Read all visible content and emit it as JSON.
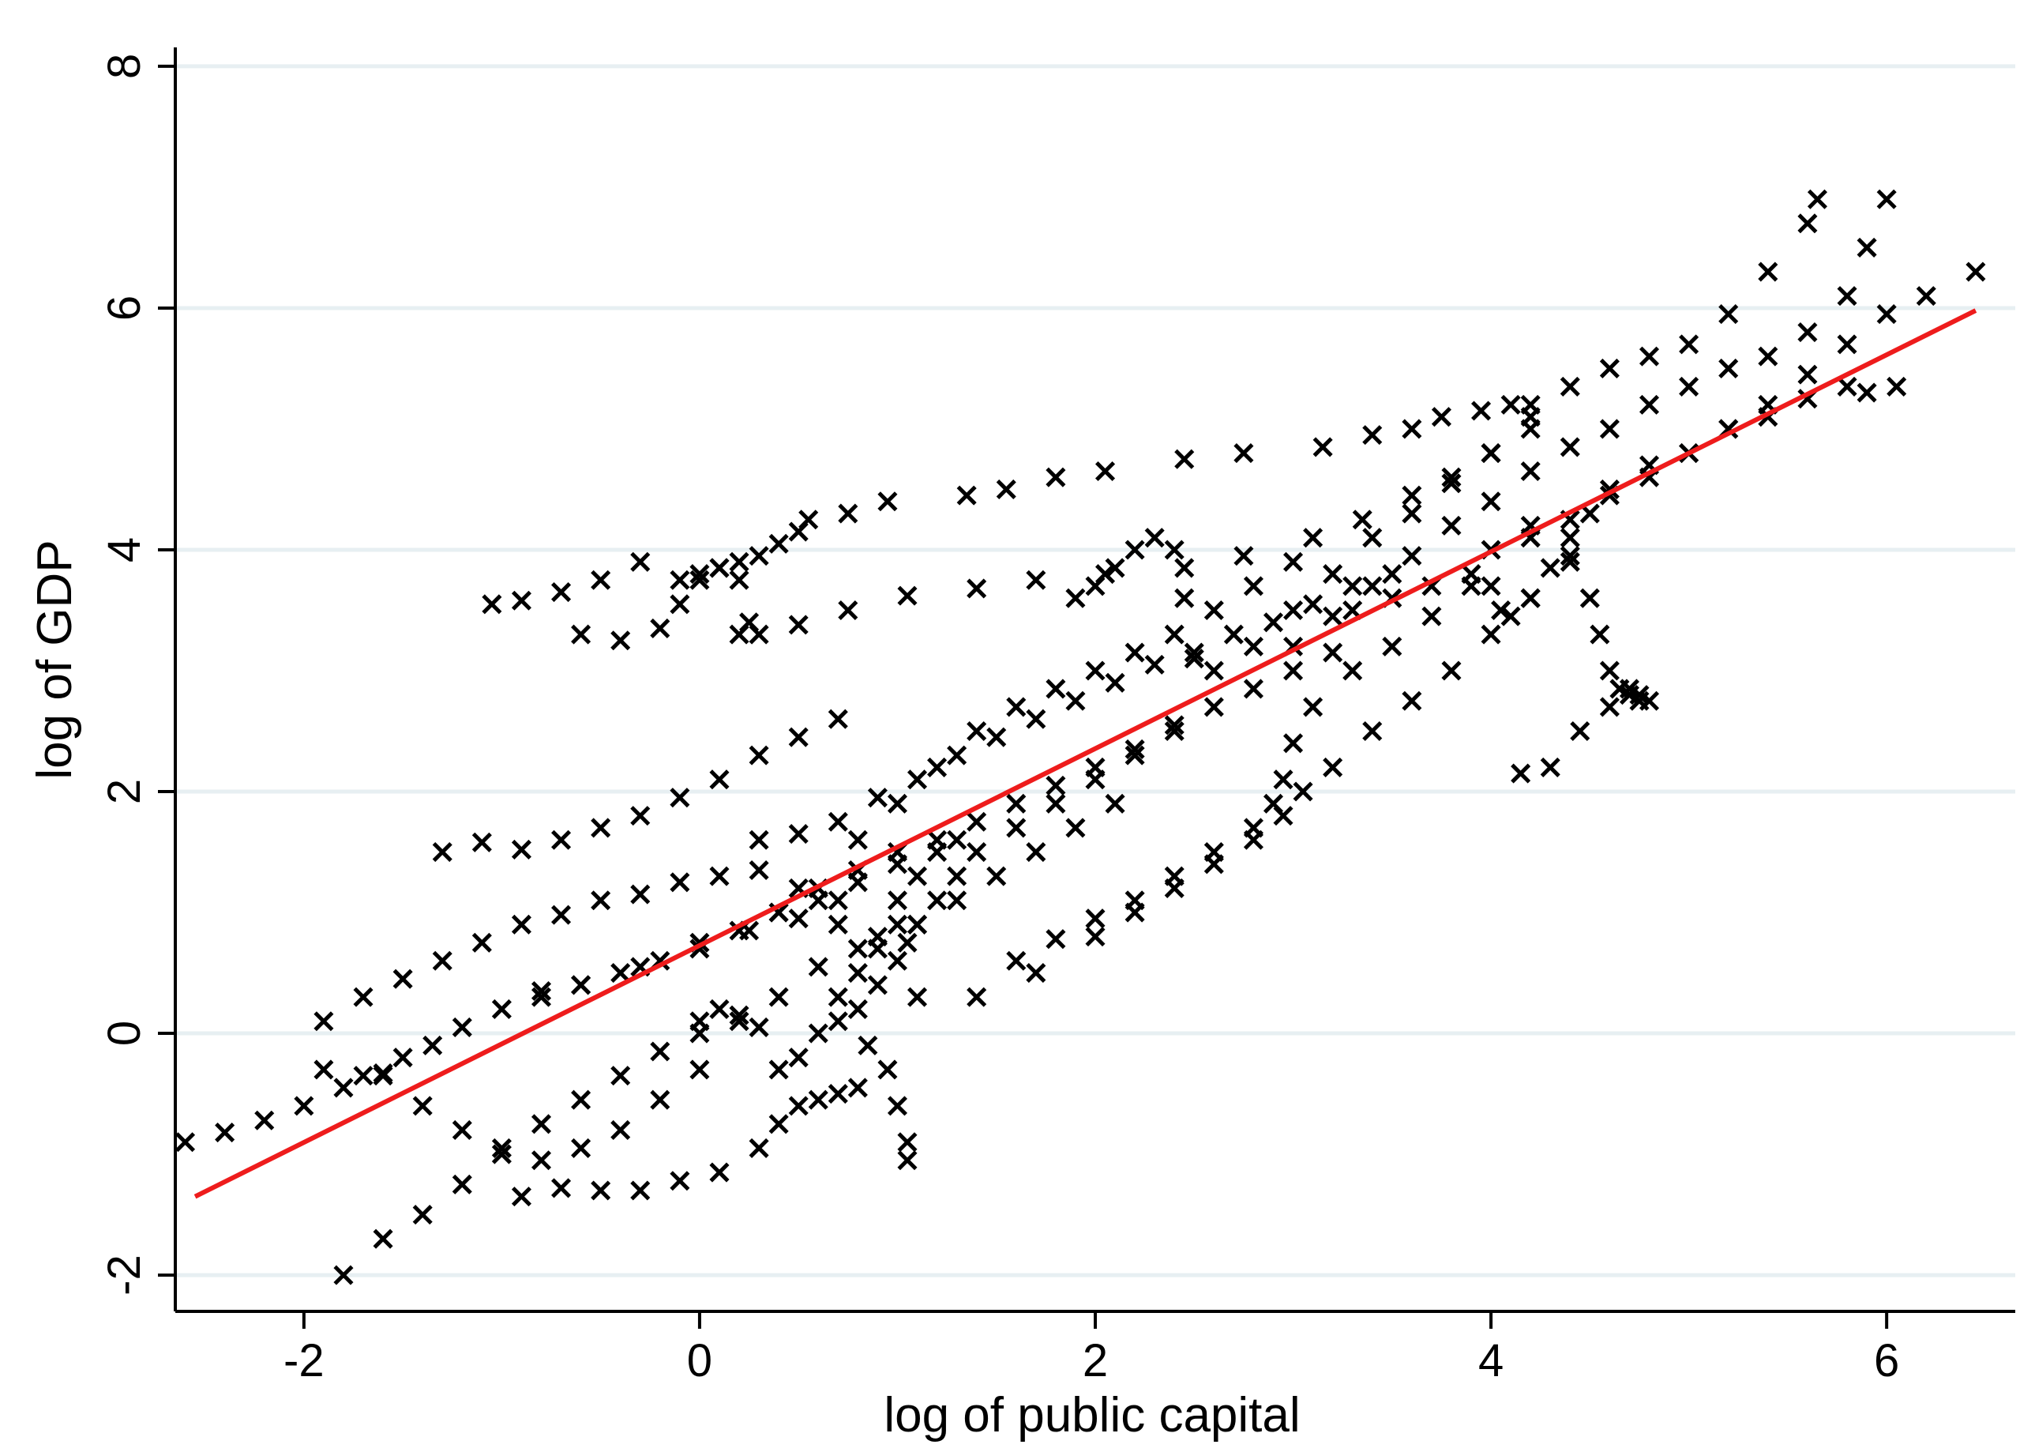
{
  "chart_data": {
    "type": "scatter",
    "title": "",
    "xlabel": "log of public capital",
    "ylabel": "log of GDP",
    "xlim": [
      -2.65,
      6.65
    ],
    "ylim": [
      -2.3,
      8.3
    ],
    "x_ticks": [
      -2,
      0,
      2,
      4,
      6
    ],
    "y_ticks": [
      -2,
      0,
      2,
      4,
      6,
      8
    ],
    "x_tick_labels": [
      "-2",
      "0",
      "2",
      "4",
      "6"
    ],
    "y_tick_labels": [
      "-2",
      "0",
      "2",
      "4",
      "6",
      "8"
    ],
    "grid": "horizontal",
    "legend": "none",
    "marker": "x",
    "colors": {
      "points": "#000000",
      "fit_line": "#ee1c1c",
      "grid": "#e7eff2"
    },
    "fit_line": {
      "x": [
        -2.55,
        6.45
      ],
      "y": [
        -1.35,
        5.98
      ]
    },
    "series": [
      {
        "x": [
          -2.6,
          -2.4,
          -2.2,
          -2.0,
          -1.8,
          -1.7,
          -1.6,
          -1.5,
          -1.35,
          -1.2,
          -1.0,
          -0.8,
          -0.6,
          -0.3,
          0.0,
          0.25,
          0.5,
          0.7
        ],
        "y": [
          -0.9,
          -0.82,
          -0.72,
          -0.6,
          -0.45,
          -0.35,
          -0.33,
          -0.2,
          -0.1,
          0.05,
          0.2,
          0.3,
          0.4,
          0.55,
          0.7,
          0.85,
          0.95,
          1.1
        ]
      },
      {
        "x": [
          -1.9,
          -1.7,
          -1.5,
          -1.3,
          -1.1,
          -0.9,
          -0.7,
          -0.5,
          -0.3,
          -0.1,
          0.1,
          0.3
        ],
        "y": [
          0.1,
          0.3,
          0.45,
          0.6,
          0.75,
          0.9,
          0.98,
          1.1,
          1.15,
          1.25,
          1.3,
          1.35
        ]
      },
      {
        "x": [
          -1.3,
          -1.1,
          -0.9,
          -0.7,
          -0.5,
          -0.3,
          -0.1,
          0.1,
          0.3,
          0.5,
          0.7
        ],
        "y": [
          1.5,
          1.58,
          1.52,
          1.6,
          1.7,
          1.8,
          1.95,
          2.1,
          2.3,
          2.45,
          2.6
        ]
      },
      {
        "x": [
          -1.8,
          -1.6,
          -1.4,
          -1.2,
          -1.0,
          -0.8,
          -0.6,
          -0.4,
          -0.2,
          0.0,
          0.2,
          0.4,
          0.6,
          0.8,
          1.0
        ],
        "y": [
          -2.0,
          -1.7,
          -1.5,
          -1.25,
          -1.0,
          -0.75,
          -0.55,
          -0.35,
          -0.15,
          0.0,
          0.1,
          0.3,
          0.55,
          0.7,
          0.9
        ]
      },
      {
        "x": [
          -0.9,
          -0.7,
          -0.5,
          -0.3,
          -0.1,
          0.1,
          0.3,
          0.4,
          0.5,
          0.6,
          0.7,
          0.8
        ],
        "y": [
          -1.35,
          -1.28,
          -1.3,
          -1.3,
          -1.22,
          -1.15,
          -0.95,
          -0.75,
          -0.6,
          -0.55,
          -0.5,
          -0.45
        ]
      },
      {
        "x": [
          -1.05,
          -0.9,
          -0.7,
          -0.5,
          -0.3,
          -0.1,
          0.0,
          0.1,
          0.2
        ],
        "y": [
          3.55,
          3.58,
          3.65,
          3.75,
          3.9,
          3.75,
          3.8,
          3.85,
          3.9
        ]
      },
      {
        "x": [
          -0.6,
          -0.4,
          -0.2,
          -0.1,
          0.0,
          0.1,
          0.2,
          0.25,
          0.3,
          0.4,
          0.5,
          0.55
        ],
        "y": [
          3.3,
          3.25,
          3.35,
          3.55,
          3.75,
          3.85,
          3.75,
          3.4,
          3.95,
          4.05,
          4.15,
          4.25
        ]
      },
      {
        "x": [
          0.2,
          0.3,
          0.5,
          0.75,
          1.05,
          1.4,
          1.7,
          2.05,
          2.45,
          2.75,
          3.1,
          3.35,
          3.6,
          3.8,
          4.0,
          4.2
        ],
        "y": [
          3.3,
          3.3,
          3.38,
          3.5,
          3.62,
          3.68,
          3.75,
          3.8,
          3.85,
          3.95,
          4.1,
          4.25,
          4.45,
          4.6,
          4.8,
          5.0
        ]
      },
      {
        "x": [
          0.75,
          0.95,
          1.35,
          1.55,
          1.8,
          2.05,
          2.45,
          2.75,
          3.15,
          3.4,
          3.6,
          3.75,
          3.95,
          4.1,
          4.2
        ],
        "y": [
          4.3,
          4.4,
          4.45,
          4.5,
          4.6,
          4.65,
          4.75,
          4.8,
          4.85,
          4.95,
          5.0,
          5.1,
          5.15,
          5.2,
          5.2
        ]
      },
      {
        "x": [
          1.9,
          2.0,
          2.1,
          2.2,
          2.3,
          2.4,
          2.45,
          2.5,
          2.6,
          2.8,
          3.0,
          3.2,
          3.4,
          3.6,
          3.8,
          4.0,
          4.2,
          4.4,
          4.6,
          4.8,
          5.0,
          5.2,
          5.4,
          5.6,
          5.65
        ],
        "y": [
          3.6,
          3.7,
          3.85,
          4.0,
          4.1,
          4.0,
          3.6,
          3.1,
          3.0,
          3.2,
          3.5,
          3.8,
          4.1,
          4.3,
          4.55,
          4.8,
          5.1,
          5.35,
          5.5,
          5.6,
          5.7,
          5.95,
          6.3,
          6.7,
          6.9
        ]
      },
      {
        "x": [
          3.0,
          3.2,
          3.4,
          3.6,
          3.8,
          4.0,
          4.2,
          4.4,
          4.6,
          4.8,
          5.0,
          5.2,
          5.4,
          5.6,
          5.8,
          5.9,
          6.0
        ],
        "y": [
          3.2,
          3.45,
          3.7,
          3.95,
          4.2,
          4.4,
          4.65,
          4.85,
          5.0,
          5.2,
          5.35,
          5.5,
          5.6,
          5.8,
          6.1,
          6.5,
          6.9
        ]
      },
      {
        "x": [
          4.0,
          4.2,
          4.4,
          4.6,
          4.8,
          5.0,
          5.2,
          5.4,
          5.6,
          5.8,
          6.0,
          6.2,
          6.45
        ],
        "y": [
          4.0,
          4.1,
          4.25,
          4.45,
          4.6,
          4.8,
          5.0,
          5.2,
          5.45,
          5.7,
          5.95,
          6.1,
          6.3
        ]
      },
      {
        "x": [
          4.6,
          4.8,
          5.0,
          5.2,
          5.4,
          5.6,
          5.8,
          5.9,
          6.05
        ],
        "y": [
          4.5,
          4.7,
          4.8,
          5.0,
          5.1,
          5.25,
          5.35,
          5.3,
          5.35
        ]
      },
      {
        "x": [
          4.2,
          4.4,
          4.5,
          4.55,
          4.6,
          4.65,
          4.7,
          4.75,
          4.8
        ],
        "y": [
          4.2,
          3.9,
          3.6,
          3.3,
          3.0,
          2.85,
          2.85,
          2.8,
          2.75
        ]
      },
      {
        "x": [
          4.15,
          4.3,
          4.45,
          4.6,
          4.7,
          4.75
        ],
        "y": [
          2.15,
          2.2,
          2.5,
          2.7,
          2.8,
          2.75
        ]
      },
      {
        "x": [
          3.3,
          3.5,
          3.7,
          3.9,
          4.0,
          4.05,
          4.1,
          4.2,
          4.3,
          4.4,
          4.5
        ],
        "y": [
          3.5,
          3.6,
          3.7,
          3.8,
          3.7,
          3.5,
          3.45,
          3.6,
          3.85,
          4.1,
          4.3
        ]
      },
      {
        "x": [
          1.1,
          1.4,
          1.7,
          2.0,
          2.2,
          2.4,
          2.6,
          2.8,
          2.95,
          3.05,
          3.2,
          3.4,
          3.6,
          3.8,
          4.0,
          4.2,
          4.4
        ],
        "y": [
          0.3,
          0.3,
          0.5,
          0.8,
          1.0,
          1.2,
          1.4,
          1.6,
          1.8,
          2.0,
          2.2,
          2.5,
          2.75,
          3.0,
          3.3,
          3.6,
          3.95
        ]
      },
      {
        "x": [
          1.6,
          1.8,
          2.0,
          2.2,
          2.4,
          2.6,
          2.8,
          2.9,
          2.95,
          3.0,
          3.1,
          3.3,
          3.5,
          3.7,
          3.9
        ],
        "y": [
          0.6,
          0.78,
          0.95,
          1.1,
          1.3,
          1.5,
          1.7,
          1.9,
          2.1,
          2.4,
          2.7,
          3.0,
          3.2,
          3.45,
          3.7
        ]
      },
      {
        "x": [
          0.7,
          0.8,
          0.9,
          1.0,
          1.05,
          1.1,
          1.2,
          1.3,
          1.4,
          1.6,
          1.8,
          2.0,
          2.2,
          2.4
        ],
        "y": [
          0.1,
          0.2,
          0.4,
          0.6,
          0.75,
          0.9,
          1.1,
          1.3,
          1.5,
          1.7,
          1.9,
          2.1,
          2.3,
          2.5
        ]
      },
      {
        "x": [
          0.0,
          0.1,
          0.2,
          0.3,
          0.4,
          0.5,
          0.6,
          0.7,
          0.8,
          0.9,
          1.0,
          1.1,
          1.2,
          1.3
        ],
        "y": [
          0.1,
          0.2,
          0.15,
          0.05,
          -0.3,
          -0.2,
          0.0,
          0.3,
          0.5,
          0.8,
          1.1,
          1.3,
          1.5,
          1.6
        ]
      },
      {
        "x": [
          0.4,
          0.6,
          0.8,
          1.0,
          1.2,
          1.4,
          1.6,
          1.8,
          2.0,
          2.2,
          2.4,
          2.6,
          2.8,
          3.0,
          3.2
        ],
        "y": [
          1.0,
          1.2,
          1.35,
          1.5,
          1.6,
          1.75,
          1.9,
          2.05,
          2.2,
          2.35,
          2.55,
          2.7,
          2.85,
          3.0,
          3.15
        ]
      },
      {
        "x": [
          0.3,
          0.5,
          0.7,
          0.9,
          1.1,
          1.3,
          1.5,
          1.7,
          1.9,
          2.1,
          2.3,
          2.5,
          2.7,
          2.9,
          3.1,
          3.3,
          3.5
        ],
        "y": [
          1.6,
          1.65,
          1.75,
          1.95,
          2.1,
          2.3,
          2.45,
          2.6,
          2.75,
          2.9,
          3.05,
          3.15,
          3.3,
          3.4,
          3.55,
          3.7,
          3.8
        ]
      },
      {
        "x": [
          0.8,
          1.0,
          1.2,
          1.4,
          1.6,
          1.8,
          2.0,
          2.2,
          2.4,
          2.6,
          2.8,
          3.0
        ],
        "y": [
          1.6,
          1.9,
          2.2,
          2.5,
          2.7,
          2.85,
          3.0,
          3.15,
          3.3,
          3.5,
          3.7,
          3.9
        ]
      },
      {
        "x": [
          0.5,
          0.7,
          0.9,
          1.1,
          1.3,
          1.5,
          1.7,
          1.9,
          2.1
        ],
        "y": [
          1.2,
          0.9,
          0.7,
          0.9,
          1.1,
          1.3,
          1.5,
          1.7,
          1.9
        ]
      },
      {
        "x": [
          0.85,
          0.95,
          1.0,
          1.05,
          1.05
        ],
        "y": [
          -0.1,
          -0.3,
          -0.6,
          -0.9,
          -1.05
        ]
      },
      {
        "x": [
          -0.8,
          -0.6,
          -0.4,
          -0.2,
          0.0,
          0.2,
          0.4,
          0.6,
          0.8,
          1.0
        ],
        "y": [
          0.35,
          0.4,
          0.5,
          0.6,
          0.75,
          0.85,
          1.0,
          1.1,
          1.25,
          1.4
        ]
      },
      {
        "x": [
          -1.9,
          -1.6,
          -1.4,
          -1.2,
          -1.0,
          -0.8,
          -0.6,
          -0.4,
          -0.2,
          0.0
        ],
        "y": [
          -0.3,
          -0.35,
          -0.6,
          -0.8,
          -0.95,
          -1.05,
          -0.95,
          -0.8,
          -0.55,
          -0.3
        ]
      }
    ]
  }
}
